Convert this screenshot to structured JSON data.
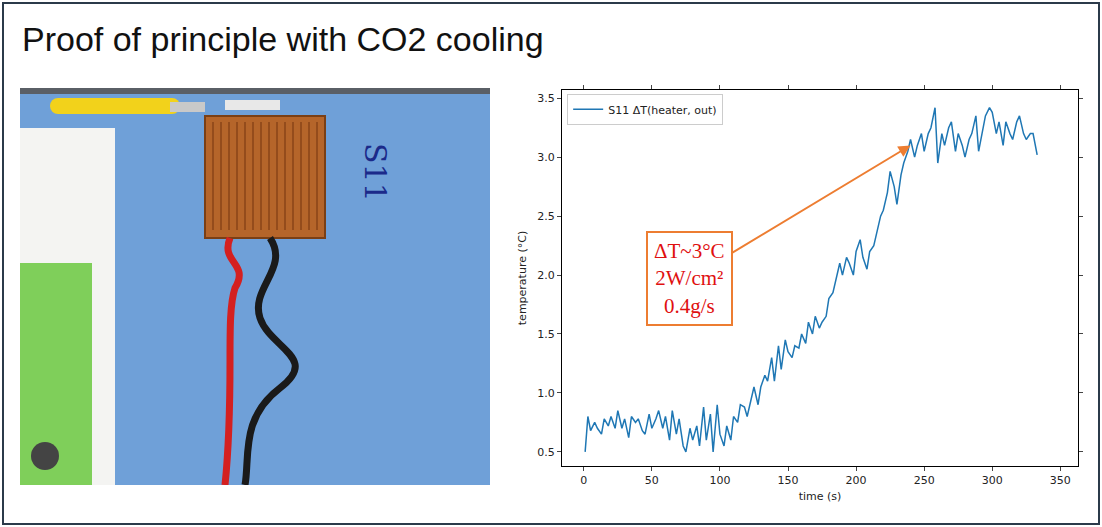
{
  "title": "Proof of principle with CO2 cooling",
  "photo": {
    "label": "S11"
  },
  "chart_data": {
    "type": "line",
    "x_label": "time (s)",
    "y_label": "temperature (°C)",
    "series": [
      {
        "name": "S11 ΔT(heater, out)",
        "color": "#1f77b4",
        "x": [
          1,
          3,
          5,
          8,
          10,
          13,
          15,
          18,
          20,
          23,
          25,
          28,
          30,
          33,
          35,
          38,
          40,
          43,
          45,
          48,
          50,
          53,
          55,
          58,
          60,
          63,
          65,
          68,
          70,
          73,
          75,
          78,
          80,
          83,
          85,
          88,
          90,
          93,
          95,
          98,
          100,
          103,
          105,
          108,
          110,
          113,
          115,
          118,
          120,
          123,
          125,
          128,
          130,
          133,
          135,
          138,
          140,
          143,
          145,
          148,
          150,
          153,
          155,
          158,
          160,
          163,
          165,
          168,
          170,
          173,
          175,
          178,
          180,
          183,
          185,
          188,
          190,
          193,
          195,
          198,
          200,
          203,
          205,
          208,
          210,
          213,
          215,
          218,
          220,
          223,
          225,
          228,
          230,
          233,
          235,
          238,
          240,
          243,
          245,
          248,
          250,
          253,
          255,
          258,
          260,
          263,
          265,
          268,
          270,
          273,
          275,
          278,
          280,
          283,
          285,
          288,
          290,
          293,
          295,
          298,
          300,
          303,
          305,
          308,
          310,
          313,
          315,
          318,
          320,
          323,
          325,
          328,
          330,
          333
        ],
        "values": [
          0.5,
          0.8,
          0.68,
          0.75,
          0.7,
          0.65,
          0.78,
          0.72,
          0.8,
          0.7,
          0.85,
          0.7,
          0.78,
          0.62,
          0.8,
          0.75,
          0.78,
          0.68,
          0.65,
          0.82,
          0.7,
          0.78,
          0.85,
          0.7,
          0.8,
          0.6,
          0.85,
          0.65,
          0.78,
          0.55,
          0.5,
          0.7,
          0.6,
          0.72,
          0.55,
          0.88,
          0.6,
          0.82,
          0.5,
          0.9,
          0.65,
          0.55,
          0.72,
          0.6,
          0.8,
          0.75,
          0.9,
          0.88,
          0.8,
          0.95,
          1.05,
          0.9,
          1.05,
          1.15,
          1.1,
          1.3,
          1.1,
          1.4,
          1.2,
          1.45,
          1.35,
          1.3,
          1.4,
          1.38,
          1.5,
          1.42,
          1.6,
          1.5,
          1.65,
          1.55,
          1.6,
          1.65,
          1.8,
          1.85,
          1.95,
          2.1,
          2.0,
          2.15,
          2.1,
          2.0,
          2.2,
          2.3,
          2.15,
          2.05,
          2.2,
          2.25,
          2.35,
          2.5,
          2.55,
          2.7,
          2.88,
          2.75,
          2.6,
          2.85,
          2.95,
          3.05,
          3.15,
          3.0,
          3.1,
          3.2,
          3.05,
          3.2,
          3.25,
          3.42,
          2.95,
          3.2,
          3.1,
          3.25,
          3.3,
          3.05,
          3.2,
          3.1,
          3.0,
          3.15,
          3.2,
          3.35,
          3.05,
          3.25,
          3.35,
          3.42,
          3.38,
          3.2,
          3.3,
          3.1,
          3.3,
          3.2,
          3.15,
          3.3,
          3.35,
          3.2,
          3.15,
          3.2,
          3.2,
          3.02
        ]
      }
    ],
    "xlim": [
      -16,
      363
    ],
    "xticks": [
      0,
      50,
      100,
      150,
      200,
      250,
      300,
      350
    ],
    "ylim": [
      0.38,
      3.57
    ],
    "yticks": [
      0.5,
      {
        "value": 1,
        "label": "1.0"
      },
      1.5,
      {
        "value": 2,
        "label": "2.0"
      },
      2.5,
      {
        "value": 3,
        "label": "3.0"
      },
      3.5
    ],
    "grid": false,
    "legend": "upper left",
    "annotations": [
      {
        "text": [
          "ΔT~3°C",
          "2W/cm²",
          "0.4g/s"
        ],
        "x": 240,
        "y": 3.1
      }
    ]
  }
}
